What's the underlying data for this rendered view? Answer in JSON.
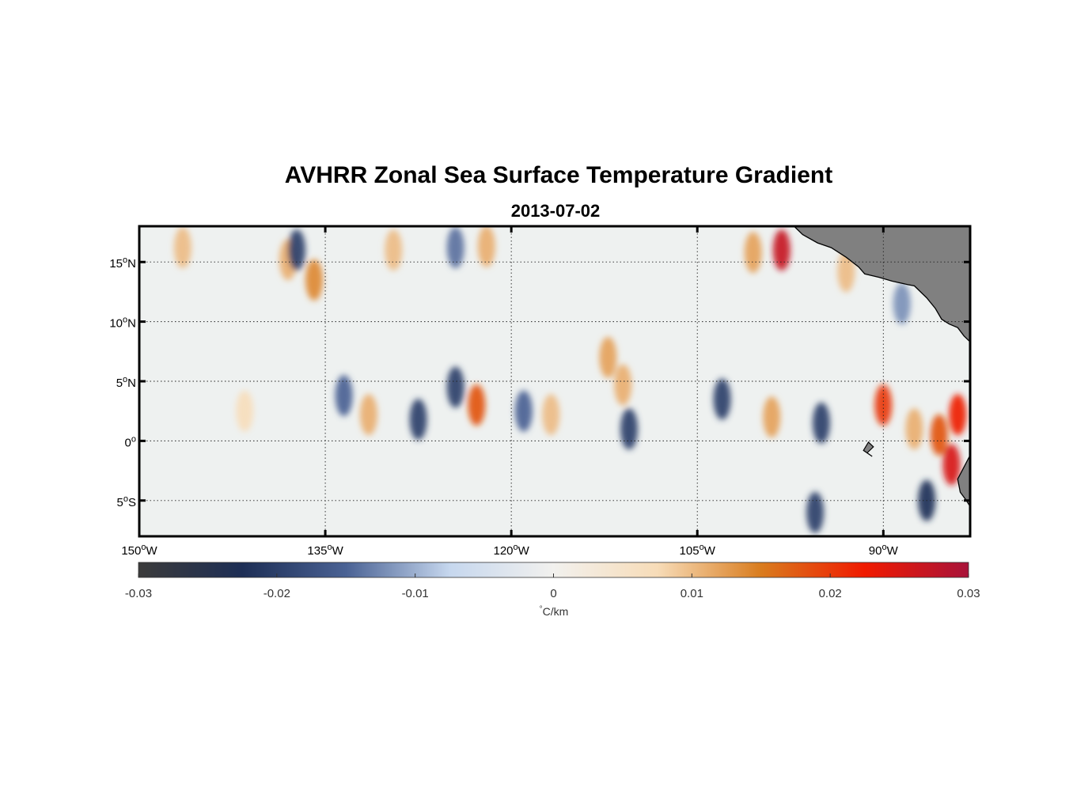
{
  "chart_data": {
    "type": "heatmap",
    "title": "AVHRR Zonal Sea Surface Temperature Gradient",
    "subtitle": "2013-07-02",
    "x_range": [
      -150,
      -83
    ],
    "y_range": [
      -8,
      18
    ],
    "x_ticks": [
      {
        "value": -150,
        "deg": "150",
        "hemi": "W"
      },
      {
        "value": -135,
        "deg": "135",
        "hemi": "W"
      },
      {
        "value": -120,
        "deg": "120",
        "hemi": "W"
      },
      {
        "value": -105,
        "deg": "105",
        "hemi": "W"
      },
      {
        "value": -90,
        "deg": "90",
        "hemi": "W"
      }
    ],
    "y_ticks": [
      {
        "value": 15,
        "deg": "15",
        "hemi": "N"
      },
      {
        "value": 10,
        "deg": "10",
        "hemi": "N"
      },
      {
        "value": 5,
        "deg": "5",
        "hemi": "N"
      },
      {
        "value": 0,
        "deg": "0",
        "hemi": ""
      },
      {
        "value": -5,
        "deg": "5",
        "hemi": "S"
      }
    ],
    "colorbar": {
      "min": -0.03,
      "max": 0.03,
      "ticks": [
        -0.03,
        -0.02,
        -0.01,
        0,
        0.01,
        0.02,
        0.03
      ],
      "tick_labels": [
        "-0.03",
        "-0.02",
        "-0.01",
        "0",
        "0.01",
        "0.02",
        "0.03"
      ],
      "unit_symbol": "°",
      "unit_text": "C/km",
      "colors": [
        "#3b3b3b",
        "#1d2e55",
        "#4a6294",
        "#c6d7ee",
        "#f2f1ee",
        "#f7dcb8",
        "#d97c1e",
        "#f01a00",
        "#a8133a"
      ]
    },
    "land_color": "#808080",
    "features": [
      {
        "lon": -146.5,
        "lat": 16.2,
        "value": 0.01
      },
      {
        "lon": -138.0,
        "lat": 15.2,
        "value": 0.011
      },
      {
        "lon": -137.3,
        "lat": 16.0,
        "value": -0.02
      },
      {
        "lon": -135.9,
        "lat": 13.5,
        "value": 0.014
      },
      {
        "lon": -129.5,
        "lat": 16.0,
        "value": 0.01
      },
      {
        "lon": -124.5,
        "lat": 16.2,
        "value": -0.014
      },
      {
        "lon": -122.0,
        "lat": 16.3,
        "value": 0.011
      },
      {
        "lon": -141.5,
        "lat": 2.5,
        "value": 0.007
      },
      {
        "lon": -133.5,
        "lat": 3.8,
        "value": -0.015
      },
      {
        "lon": -131.5,
        "lat": 2.2,
        "value": 0.011
      },
      {
        "lon": -127.5,
        "lat": 1.8,
        "value": -0.02
      },
      {
        "lon": -124.5,
        "lat": 4.5,
        "value": -0.02
      },
      {
        "lon": -122.8,
        "lat": 3.0,
        "value": 0.018
      },
      {
        "lon": -119.0,
        "lat": 2.5,
        "value": -0.015
      },
      {
        "lon": -116.8,
        "lat": 2.2,
        "value": 0.01
      },
      {
        "lon": -110.5,
        "lat": 1.0,
        "value": -0.02
      },
      {
        "lon": -111.0,
        "lat": 4.7,
        "value": 0.011
      },
      {
        "lon": -112.2,
        "lat": 7.0,
        "value": 0.012
      },
      {
        "lon": -103.0,
        "lat": 3.5,
        "value": -0.02
      },
      {
        "lon": -99.0,
        "lat": 2.0,
        "value": 0.012
      },
      {
        "lon": -95.0,
        "lat": 1.5,
        "value": -0.02
      },
      {
        "lon": -90.0,
        "lat": 3.0,
        "value": 0.02
      },
      {
        "lon": -87.5,
        "lat": 1.0,
        "value": 0.011
      },
      {
        "lon": -84.5,
        "lat": -2.0,
        "value": 0.025
      },
      {
        "lon": -85.5,
        "lat": 0.5,
        "value": 0.018
      },
      {
        "lon": -84.0,
        "lat": 2.2,
        "value": 0.022
      },
      {
        "lon": -86.5,
        "lat": -5.0,
        "value": -0.022
      },
      {
        "lon": -95.5,
        "lat": -6.0,
        "value": -0.02
      },
      {
        "lon": -100.5,
        "lat": 15.8,
        "value": 0.012
      },
      {
        "lon": -98.2,
        "lat": 16.0,
        "value": 0.027
      },
      {
        "lon": -93.0,
        "lat": 14.2,
        "value": 0.01
      },
      {
        "lon": -88.5,
        "lat": 11.5,
        "value": -0.012
      }
    ]
  }
}
